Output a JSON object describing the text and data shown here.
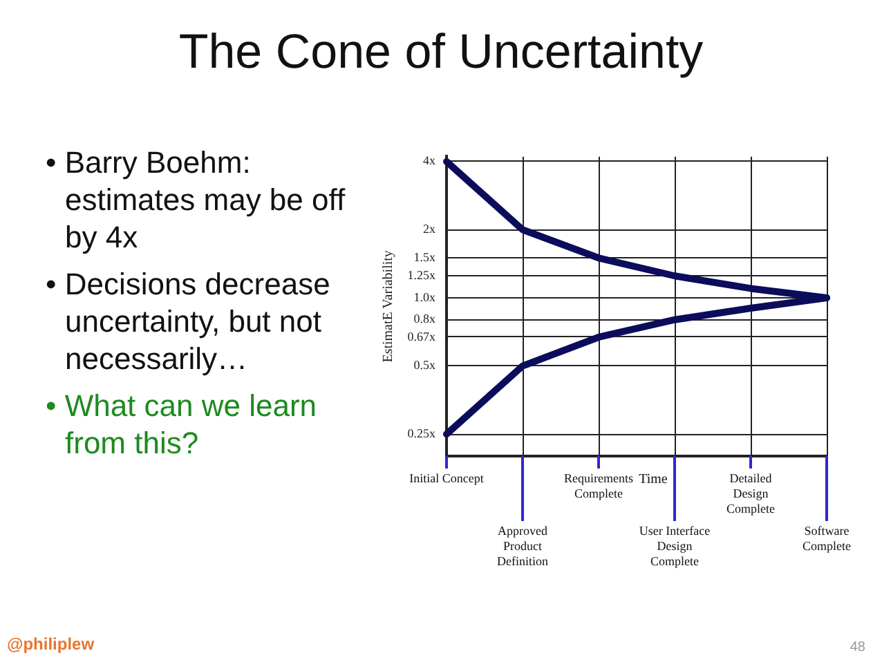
{
  "chart_data": {
    "type": "line",
    "title": "The Cone of Uncertainty",
    "xlabel": "Time",
    "ylabel": "EstimatE Variability",
    "annotations": [
      "• Barry Boehm: estimates may be off by 4x",
      "• Decisions decrease uncertainty, but not necessarily…",
      "• What can we learn from this?",
      "@philiplew",
      "48"
    ],
    "categories": [
      "Initial Concept",
      "Approved Product Definition",
      "Requirements Complete",
      "User Interface Design Complete",
      "Detailed Design Complete",
      "Software Complete"
    ],
    "series": [
      {
        "color": "#0c0c5c",
        "values": [
          4,
          2,
          1.5,
          1.25,
          1.1,
          1
        ]
      },
      {
        "color": "#0c0c5c",
        "values": [
          0.25,
          0.5,
          0.67,
          0.8,
          0.9,
          1
        ]
      }
    ],
    "log": "y",
    "ylim": [
      0.2,
      4.2
    ],
    "yticks": [
      {
        "value": 0.25,
        "label": "0.25x"
      },
      {
        "value": 0.5,
        "label": "0.5x"
      },
      {
        "value": 0.67,
        "label": "0.67x"
      },
      {
        "value": 0.8,
        "label": "0.8x"
      },
      {
        "value": 1,
        "label": "1.0x"
      },
      {
        "value": 1.25,
        "label": "1.25x"
      },
      {
        "value": 1.5,
        "label": "1.5x"
      },
      {
        "value": 2,
        "label": "2x"
      },
      {
        "value": 4,
        "label": "4x"
      }
    ],
    "grid": true,
    "marker": "none",
    "line_style": "solid"
  }
}
